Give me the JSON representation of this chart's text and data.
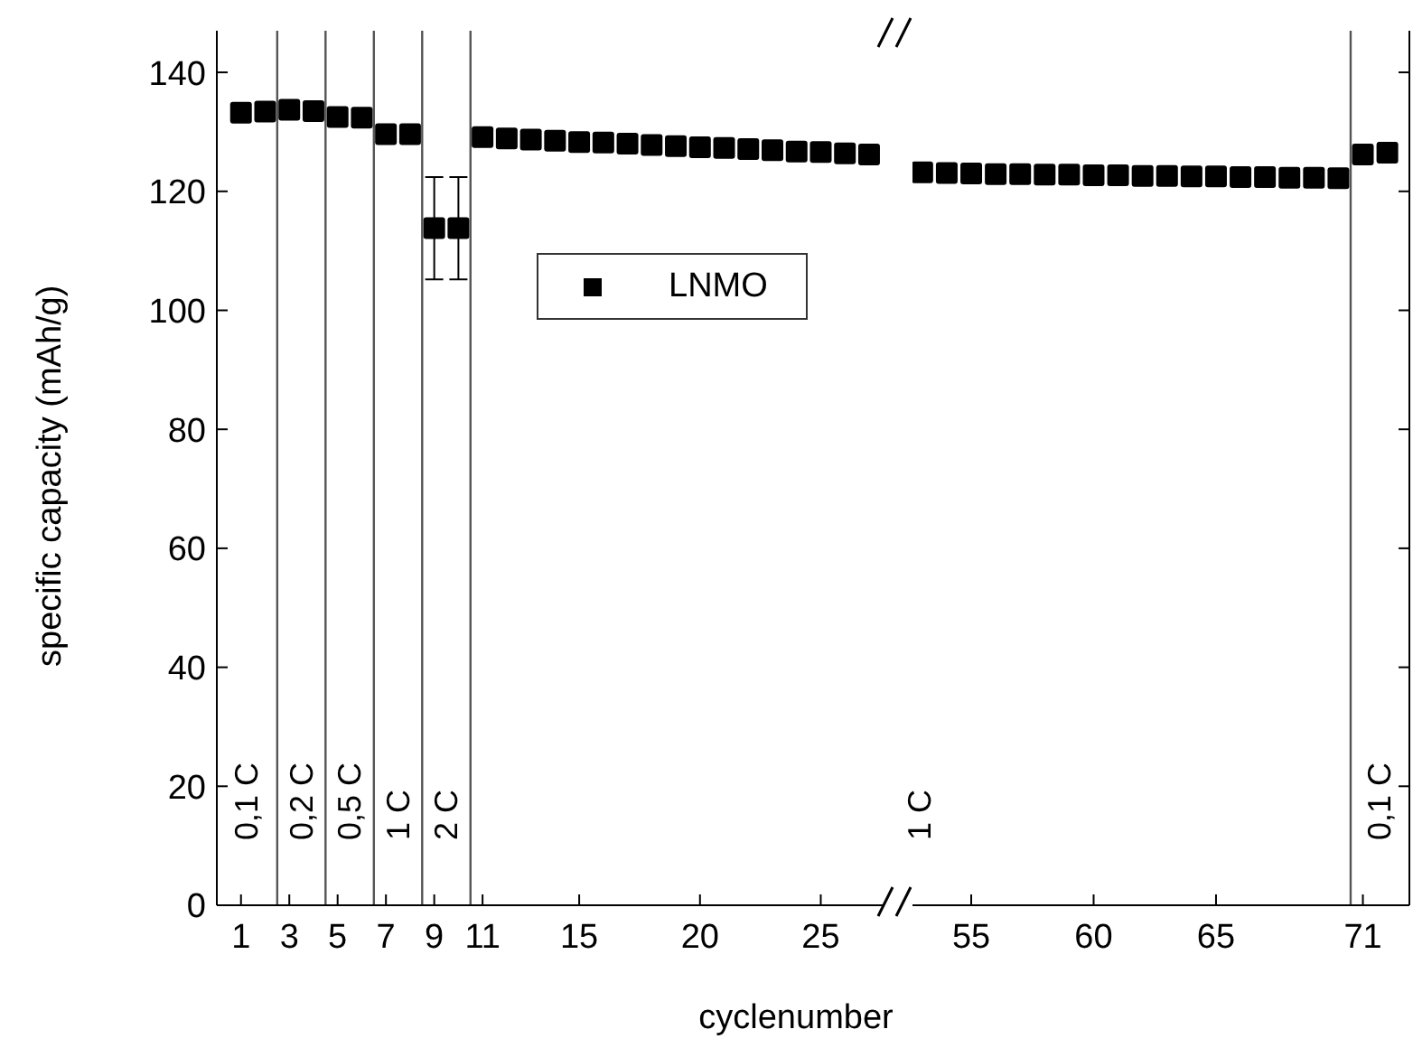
{
  "chart_data": [
    {
      "type": "scatter",
      "xlabel": "cyclenumber",
      "ylabel": "specific capacity (mAh/g)",
      "legend": "top right",
      "marker": "square",
      "series": [
        {
          "name": "LNMO",
          "color": "#000000",
          "x": [
            1,
            2,
            3,
            4,
            5,
            6,
            7,
            8,
            9,
            10,
            11,
            12,
            13,
            14,
            15,
            16,
            17,
            18,
            19,
            20,
            21,
            22,
            23,
            24,
            25,
            26,
            27
          ],
          "values": [
            133.2,
            133.4,
            133.7,
            133.5,
            132.5,
            132.4,
            129.6,
            129.6,
            113.8,
            113.8,
            129.1,
            128.9,
            128.7,
            128.5,
            128.3,
            128.2,
            128.0,
            127.8,
            127.6,
            127.4,
            127.3,
            127.1,
            126.9,
            126.7,
            126.6,
            126.4,
            126.2
          ],
          "errors": [
            null,
            null,
            null,
            null,
            null,
            null,
            null,
            null,
            8.6,
            8.6,
            null,
            null,
            null,
            null,
            null,
            null,
            null,
            null,
            null,
            null,
            null,
            null,
            null,
            null,
            null,
            null,
            null
          ]
        }
      ],
      "xlim": [
        0,
        27.6
      ],
      "xticks": [
        1,
        3,
        5,
        7,
        9,
        11,
        15,
        20,
        25
      ],
      "ylim": [
        0,
        147
      ],
      "yticks": [
        0,
        20,
        40,
        60,
        80,
        100,
        120,
        140
      ],
      "ref_lines": [
        {
          "axis": "x",
          "value": 2.5,
          "color": "#555555"
        },
        {
          "axis": "x",
          "value": 4.5,
          "color": "#555555"
        },
        {
          "axis": "x",
          "value": 6.5,
          "color": "#555555"
        },
        {
          "axis": "x",
          "value": 8.5,
          "color": "#555555"
        },
        {
          "axis": "x",
          "value": 10.5,
          "color": "#555555"
        }
      ],
      "annotations": [
        "0,1 C",
        "0,2 C",
        "0,5 C",
        "1 C",
        "2 C"
      ]
    },
    {
      "type": "scatter",
      "marker": "square",
      "tick_labels": "x",
      "series": [
        {
          "color": "#000000",
          "x": [
            53,
            54,
            55,
            56,
            57,
            58,
            59,
            60,
            61,
            62,
            63,
            64,
            65,
            66,
            67,
            68,
            69,
            70,
            71,
            72
          ],
          "values": [
            123.2,
            123.1,
            123.0,
            122.9,
            122.9,
            122.8,
            122.8,
            122.7,
            122.7,
            122.6,
            122.6,
            122.5,
            122.5,
            122.4,
            122.4,
            122.3,
            122.3,
            122.2,
            126.2,
            126.5
          ]
        }
      ],
      "xlim": [
        52.6,
        72.9
      ],
      "xticks": [
        55,
        60,
        65,
        71
      ],
      "ylim": [
        0,
        147
      ],
      "yticks": [
        0,
        20,
        40,
        60,
        80,
        100,
        120,
        140
      ],
      "ref_lines": [
        {
          "axis": "x",
          "value": 70.5,
          "color": "#555555"
        }
      ],
      "annotations": [
        "1 C",
        "0,1 C"
      ]
    }
  ]
}
